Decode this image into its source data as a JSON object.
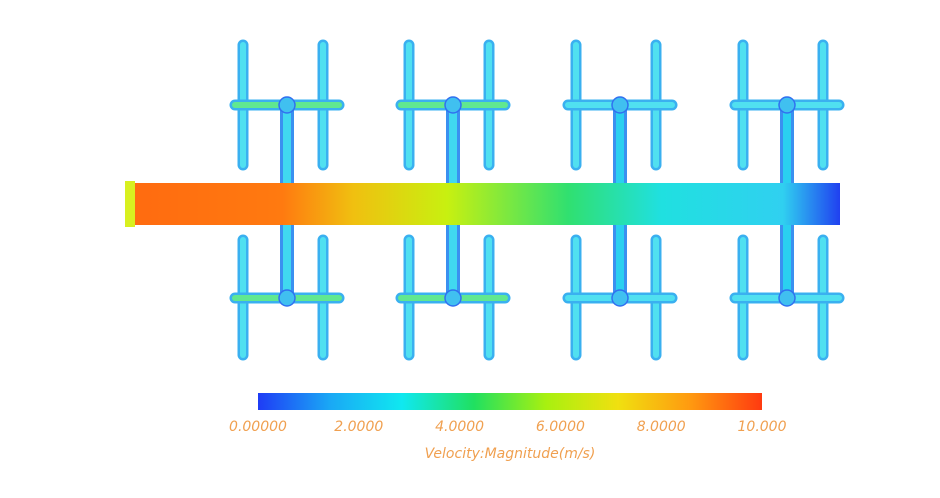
{
  "chart_data": {
    "type": "colorbar",
    "xlabel": "Velocity:Magnitude(m/s)",
    "xlim": [
      0,
      10
    ],
    "xticks": [
      {
        "value": 0,
        "label": "0.00000"
      },
      {
        "value": 2,
        "label": "2.0000"
      },
      {
        "value": 4,
        "label": "4.0000"
      },
      {
        "value": 6,
        "label": "6.0000"
      },
      {
        "value": 8,
        "label": "8.0000"
      },
      {
        "value": 10,
        "label": "10.000"
      }
    ],
    "colors": [
      "#1f3cf5",
      "#1aa8f5",
      "#10e8f0",
      "#20e060",
      "#a8f010",
      "#f0e010",
      "#ff9a10",
      "#ff3a10"
    ],
    "label_color": "#f0a050"
  }
}
